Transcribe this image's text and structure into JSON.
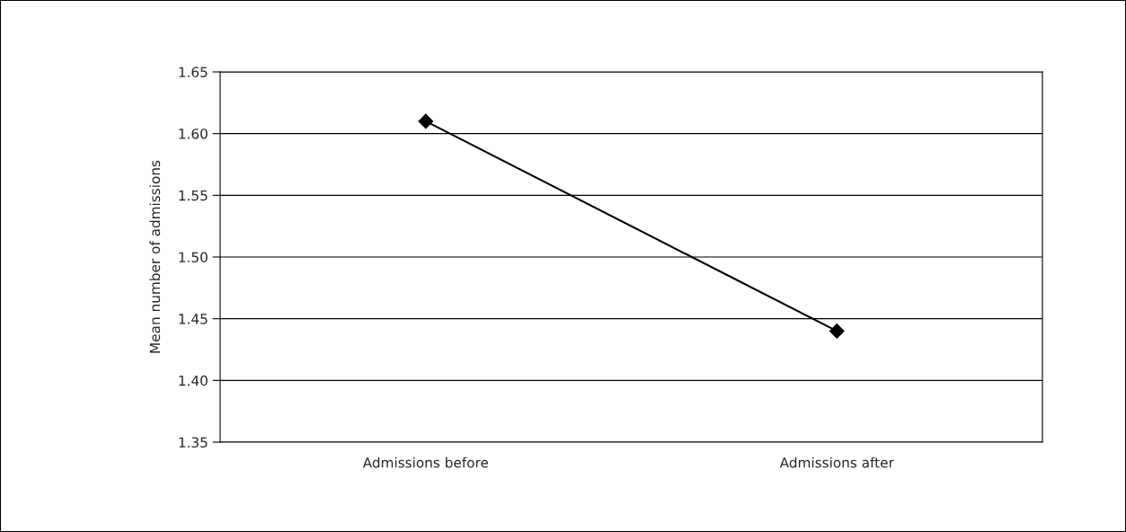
{
  "chart_data": {
    "type": "line",
    "ylabel": "Mean number of admissions",
    "categories": [
      "Admissions before",
      "Admissions after"
    ],
    "series": [
      {
        "color": "#000000",
        "values": [
          1.61,
          1.44
        ]
      }
    ],
    "ylim": [
      1.35,
      1.65
    ],
    "yticks": [
      {
        "value": 1.35,
        "label": "1.35"
      },
      {
        "value": 1.4,
        "label": "1.40"
      },
      {
        "value": 1.45,
        "label": "1.45"
      },
      {
        "value": 1.5,
        "label": "1.50"
      },
      {
        "value": 1.55,
        "label": "1.55"
      },
      {
        "value": 1.6,
        "label": "1.60"
      },
      {
        "value": 1.65,
        "label": "1.65"
      }
    ],
    "grid": "y",
    "marker": "diamond",
    "line_style": "solid"
  }
}
